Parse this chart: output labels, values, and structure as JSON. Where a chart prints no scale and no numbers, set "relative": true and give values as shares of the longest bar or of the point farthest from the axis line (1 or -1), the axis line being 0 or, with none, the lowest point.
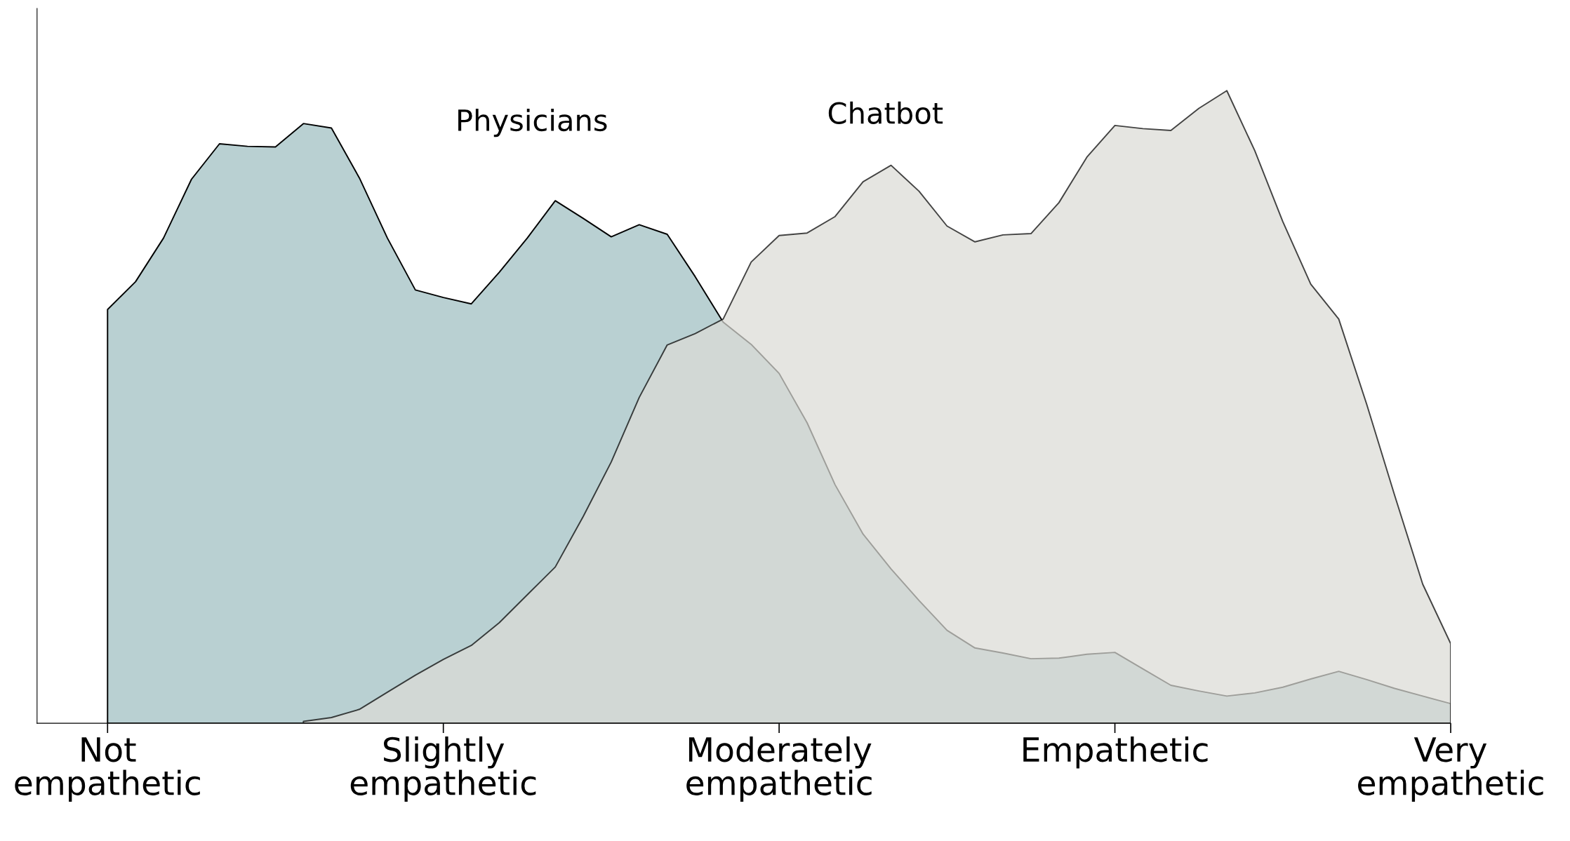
{
  "chart_data": {
    "type": "area",
    "relative": true,
    "grid": false,
    "legend": false,
    "categories": [
      "Not\nempathetic",
      null,
      null,
      null,
      null,
      null,
      null,
      null,
      null,
      null,
      null,
      null,
      "Slightly\nempathetic",
      null,
      null,
      null,
      null,
      null,
      null,
      null,
      null,
      null,
      null,
      null,
      "Moderately\nempathetic",
      null,
      null,
      null,
      null,
      null,
      null,
      null,
      null,
      null,
      null,
      null,
      "Empathetic",
      null,
      null,
      null,
      null,
      null,
      null,
      null,
      null,
      null,
      null,
      null,
      "Very\nempathetic"
    ],
    "series": [
      {
        "name": "Physicians",
        "color": "#b9d0d2",
        "values": [
          0.654,
          0.698,
          0.767,
          0.86,
          0.916,
          0.912,
          0.911,
          0.948,
          0.941,
          0.862,
          0.767,
          0.685,
          0.673,
          0.663,
          0.713,
          0.767,
          0.826,
          0.798,
          0.769,
          0.788,
          0.773,
          0.706,
          0.634,
          0.599,
          0.553,
          0.475,
          0.377,
          0.299,
          0.244,
          0.194,
          0.147,
          0.119,
          0.111,
          0.102,
          0.103,
          0.109,
          0.112,
          0.086,
          0.06,
          0.051,
          0.043,
          0.048,
          0.057,
          0.07,
          0.082,
          0.069,
          0.055,
          0.043,
          0.031
        ]
      },
      {
        "name": "Chatbot",
        "color": "#dbdbd6",
        "values": [
          null,
          null,
          null,
          null,
          null,
          null,
          null,
          0.003,
          0.009,
          0.022,
          0.049,
          0.076,
          0.101,
          0.123,
          0.159,
          0.203,
          0.247,
          0.327,
          0.413,
          0.515,
          0.598,
          0.616,
          0.639,
          0.729,
          0.771,
          0.775,
          0.801,
          0.856,
          0.882,
          0.841,
          0.786,
          0.761,
          0.772,
          0.774,
          0.823,
          0.895,
          0.945,
          0.94,
          0.937,
          0.972,
          1.0,
          0.905,
          0.793,
          0.694,
          0.639,
          0.504,
          0.36,
          0.22,
          0.126
        ]
      }
    ]
  }
}
